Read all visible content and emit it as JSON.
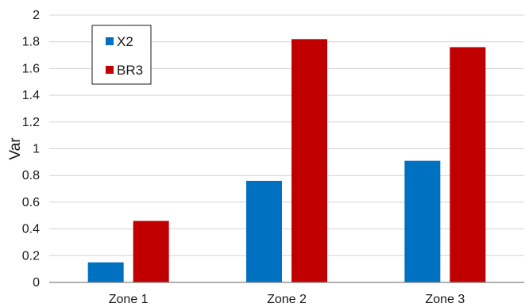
{
  "chart_data": {
    "type": "bar",
    "title": "",
    "xlabel": "",
    "ylabel": "Var",
    "categories": [
      "Zone 1",
      "Zone 2",
      "Zone 3"
    ],
    "series": [
      {
        "name": "X2",
        "color": "#0070c0",
        "values": [
          0.15,
          0.76,
          0.91
        ]
      },
      {
        "name": "BR3",
        "color": "#c00000",
        "values": [
          0.46,
          1.82,
          1.76
        ]
      }
    ],
    "ylim": [
      0,
      2
    ],
    "yticks": [
      "0",
      "0.2",
      "0.4",
      "0.6",
      "0.8",
      "1",
      "1.2",
      "1.4",
      "1.6",
      "1.8",
      "2"
    ],
    "grid": true,
    "legend_position": "top-left"
  }
}
